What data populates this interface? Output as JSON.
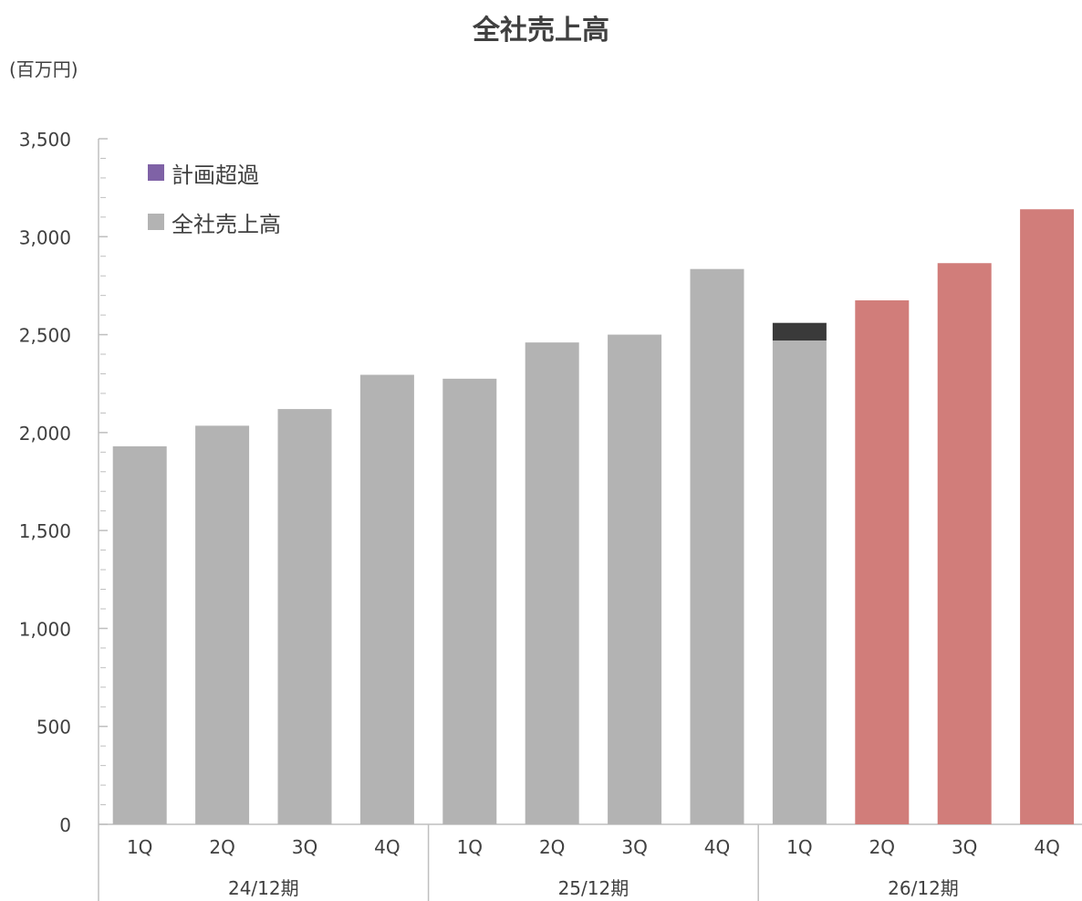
{
  "colors": {
    "actual": "#b3b3b3",
    "excess": "#3a3a3a",
    "plan": "#d17d7a",
    "excess_legend": "#7f62a6",
    "axis": "#bfbfbf",
    "text": "#404040"
  },
  "chart_data": {
    "type": "bar",
    "title": "全社売上高",
    "unit_label": "(百万円)",
    "ylim": [
      0,
      3500
    ],
    "yticks": [
      "0",
      "500",
      "1,000",
      "1,500",
      "2,000",
      "2,500",
      "3,000",
      "3,500"
    ],
    "ytick_values": [
      0,
      500,
      1000,
      1500,
      2000,
      2500,
      3000,
      3500
    ],
    "legend": [
      {
        "label": "計画超過",
        "color_key": "excess_legend"
      },
      {
        "label": "全社売上高",
        "color_key": "actual"
      }
    ],
    "legend_position": "top-left",
    "groups": [
      {
        "label": "24/12期",
        "quarters": [
          "1Q",
          "2Q",
          "3Q",
          "4Q"
        ]
      },
      {
        "label": "25/12期",
        "quarters": [
          "1Q",
          "2Q",
          "3Q",
          "4Q"
        ]
      },
      {
        "label": "26/12期",
        "quarters": [
          "1Q",
          "2Q",
          "3Q",
          "4Q"
        ]
      }
    ],
    "bars": [
      {
        "group": "24/12期",
        "quarter": "1Q",
        "value": 1930,
        "kind": "actual"
      },
      {
        "group": "24/12期",
        "quarter": "2Q",
        "value": 2035,
        "kind": "actual"
      },
      {
        "group": "24/12期",
        "quarter": "3Q",
        "value": 2120,
        "kind": "actual"
      },
      {
        "group": "24/12期",
        "quarter": "4Q",
        "value": 2295,
        "kind": "actual"
      },
      {
        "group": "25/12期",
        "quarter": "1Q",
        "value": 2275,
        "kind": "actual"
      },
      {
        "group": "25/12期",
        "quarter": "2Q",
        "value": 2460,
        "kind": "actual"
      },
      {
        "group": "25/12期",
        "quarter": "3Q",
        "value": 2500,
        "kind": "actual"
      },
      {
        "group": "25/12期",
        "quarter": "4Q",
        "value": 2835,
        "kind": "actual"
      },
      {
        "group": "26/12期",
        "quarter": "1Q",
        "value": 2470,
        "excess": 90,
        "kind": "actual"
      },
      {
        "group": "26/12期",
        "quarter": "2Q",
        "value": 2675,
        "kind": "plan"
      },
      {
        "group": "26/12期",
        "quarter": "3Q",
        "value": 2865,
        "kind": "plan"
      },
      {
        "group": "26/12期",
        "quarter": "4Q",
        "value": 3140,
        "kind": "plan"
      }
    ]
  }
}
